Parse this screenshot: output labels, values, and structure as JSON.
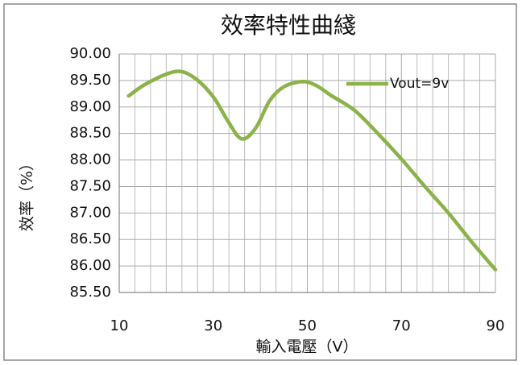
{
  "chart_data": {
    "type": "line",
    "title": "效率特性曲綫",
    "xlabel": "輸入電壓（V）",
    "ylabel": "效率（%）",
    "x": [
      12,
      16,
      22,
      26,
      30,
      33,
      36,
      39,
      42,
      45,
      49,
      52,
      55,
      60,
      65,
      70,
      75,
      80,
      85,
      90
    ],
    "series": [
      {
        "name": "Vout=9v",
        "color": "#8ab34a",
        "values": [
          89.21,
          89.45,
          89.67,
          89.55,
          89.19,
          88.75,
          88.4,
          88.6,
          89.12,
          89.38,
          89.48,
          89.4,
          89.22,
          88.94,
          88.5,
          88.02,
          87.5,
          87.0,
          86.45,
          85.93
        ]
      }
    ],
    "xlim": [
      10,
      90
    ],
    "xticks": [
      10,
      30,
      50,
      70,
      90
    ],
    "ylim": [
      85.5,
      90
    ],
    "yticks": [
      {
        "value": 85.5,
        "label": "85.50"
      },
      {
        "value": 86,
        "label": "86.00"
      },
      {
        "value": 86.5,
        "label": "86.50"
      },
      {
        "value": 87,
        "label": "87.00"
      },
      {
        "value": 87.5,
        "label": "87.50"
      },
      {
        "value": 88,
        "label": "88.00"
      },
      {
        "value": 88.5,
        "label": "88.50"
      },
      {
        "value": 89,
        "label": "89.00"
      },
      {
        "value": 89.5,
        "label": "89.50"
      },
      {
        "value": 90,
        "label": "90.00"
      }
    ],
    "grid": true,
    "legend": "upper right"
  }
}
